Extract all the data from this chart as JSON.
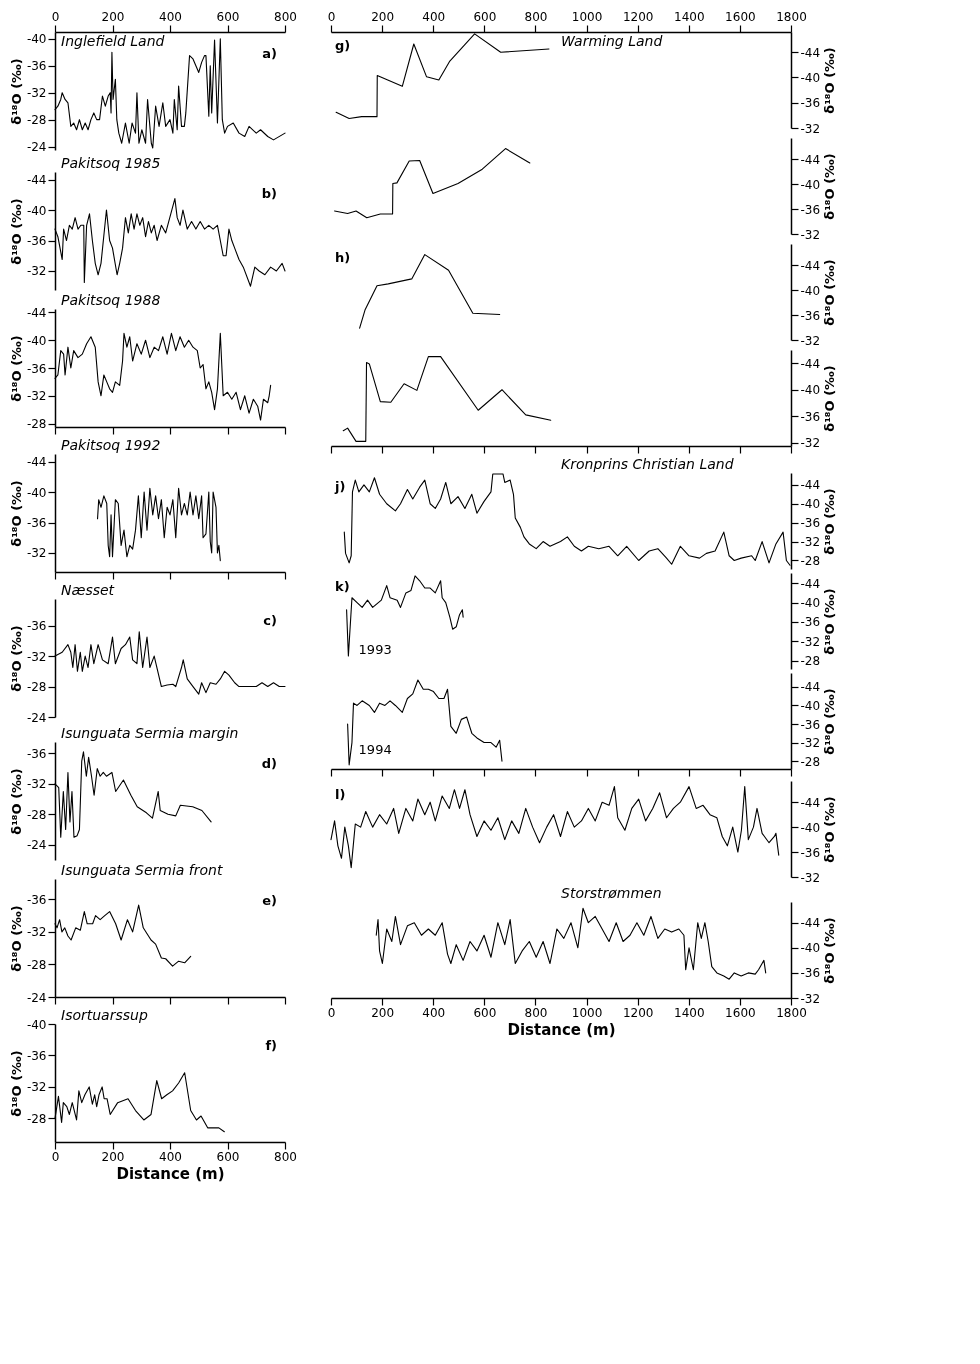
{
  "chart_data": [
    {
      "type": "line",
      "title": "Inglefield Land",
      "annotations": [
        "a)"
      ],
      "ylabel": "δ¹⁸O (‰)",
      "xlim": [
        0,
        800
      ],
      "x2lim": [
        0,
        800
      ],
      "x2ticks": [
        0,
        200,
        400,
        600,
        800
      ],
      "ylim": [
        -23.5,
        -41
      ],
      "yticks": [
        -40,
        -36,
        -32,
        -28,
        -24
      ],
      "x": [
        0,
        10,
        20,
        25,
        35,
        45,
        55,
        65,
        75,
        85,
        95,
        105,
        115,
        125,
        135,
        145,
        155,
        165,
        175,
        185,
        192,
        195,
        198,
        202,
        210,
        215,
        222,
        232,
        245,
        258,
        268,
        280,
        285,
        292,
        302,
        315,
        322,
        335,
        340,
        350,
        362,
        375,
        385,
        400,
        410,
        415,
        425,
        430,
        440,
        450,
        455,
        468,
        480,
        490,
        500,
        510,
        520,
        525,
        535,
        540,
        545,
        555,
        565,
        575,
        582,
        590,
        600,
        620,
        640,
        660,
        675,
        700,
        715,
        740,
        760,
        800
      ],
      "series": [
        {
          "color": "#000000",
          "values": [
            -29.5,
            -30,
            -31,
            -32,
            -31,
            -30.5,
            -27,
            -27.5,
            -26.5,
            -28,
            -26.5,
            -27.5,
            -26.5,
            -28,
            -29,
            -28,
            -28,
            -31.5,
            -30,
            -31.5,
            -32,
            -29,
            -38,
            -31,
            -34,
            -28,
            -26,
            -24.5,
            -27.5,
            -24.5,
            -27.5,
            -26,
            -32,
            -24.5,
            -26.5,
            -24.5,
            -31,
            -24.5,
            -23.8,
            -30,
            -27,
            -30.5,
            -27,
            -28,
            -26,
            -31,
            -26.5,
            -33,
            -27,
            -27,
            -29,
            -37.5,
            -37,
            -36,
            -35,
            -36.5,
            -37.5,
            -37.5,
            -28.5,
            -36,
            -29,
            -39.8,
            -27.5,
            -40,
            -28,
            -26,
            -27,
            -27.5,
            -26,
            -25.5,
            -27,
            -26,
            -26.5,
            -25.5,
            -25,
            -26
          ]
        }
      ]
    },
    {
      "type": "line",
      "title": "Pakitsoq 1985",
      "annotations": [
        "b)"
      ],
      "ylabel": "δ¹⁸O (‰)",
      "xlim": [
        0,
        800
      ],
      "ylim": [
        -29.5,
        -45
      ],
      "yticks": [
        -44,
        -40,
        -36,
        -32
      ],
      "x": [
        0,
        10,
        20,
        25,
        30,
        40,
        50,
        60,
        70,
        80,
        90,
        100,
        102,
        110,
        120,
        130,
        140,
        150,
        160,
        179,
        190,
        200,
        216,
        225,
        235,
        245,
        255,
        265,
        275,
        285,
        295,
        305,
        315,
        325,
        335,
        345,
        355,
        370,
        385,
        417,
        425,
        435,
        445,
        460,
        475,
        490,
        505,
        520,
        535,
        550,
        565,
        585,
        595,
        605,
        615,
        625,
        640,
        655,
        680,
        695,
        710,
        730,
        750,
        770,
        790,
        800
      ],
      "series": [
        {
          "color": "#000000",
          "values": [
            -37.5,
            -36.5,
            -34.5,
            -33.5,
            -37.5,
            -36,
            -38,
            -37.5,
            -39,
            -37.5,
            -38,
            -38,
            -30.5,
            -38,
            -39.5,
            -36,
            -33,
            -31.5,
            -33,
            -40,
            -36,
            -35,
            -31.5,
            -33,
            -35,
            -39,
            -37,
            -39.5,
            -37.5,
            -39.5,
            -38,
            -39,
            -36.5,
            -38.5,
            -37,
            -38,
            -36,
            -38,
            -37,
            -41.5,
            -39,
            -38,
            -40,
            -37.5,
            -38.5,
            -37.5,
            -38.5,
            -37.5,
            -38,
            -37.5,
            -38,
            -34,
            -34,
            -37.5,
            -36,
            -35,
            -33.5,
            -32.5,
            -30,
            -32.5,
            -32,
            -31.5,
            -32.5,
            -32,
            -33,
            -32
          ]
        }
      ]
    },
    {
      "type": "line",
      "title": "Pakitsoq 1988",
      "ylabel": "δ¹⁸O (‰)",
      "xlim": [
        0,
        800
      ],
      "xticks": [
        0,
        200,
        400,
        600,
        800
      ],
      "tick_labels": "y",
      "ylim": [
        -27.5,
        -44.5
      ],
      "yticks": [
        -44,
        -40,
        -36,
        -32,
        -28
      ],
      "x": [
        0,
        10,
        20,
        30,
        35,
        45,
        55,
        65,
        80,
        95,
        110,
        125,
        140,
        150,
        160,
        170,
        180,
        190,
        200,
        210,
        225,
        235,
        240,
        250,
        260,
        270,
        285,
        300,
        315,
        330,
        345,
        360,
        375,
        390,
        405,
        420,
        435,
        450,
        465,
        480,
        495,
        505,
        515,
        525,
        535,
        545,
        555,
        565,
        575,
        585,
        600,
        615,
        630,
        645,
        660,
        675,
        690,
        705,
        715,
        725,
        740,
        745,
        750
      ],
      "series": [
        {
          "color": "#000000",
          "values": [
            -34.5,
            -35,
            -38.5,
            -38,
            -35,
            -39,
            -36,
            -38.5,
            -37.5,
            -38,
            -39.5,
            -40.5,
            -39,
            -34,
            -32,
            -35,
            -34,
            -33,
            -32.5,
            -34,
            -33.5,
            -37,
            -41,
            -39,
            -40.5,
            -37,
            -39.5,
            -38,
            -40,
            -37.5,
            -39,
            -38.5,
            -40.5,
            -38,
            -41,
            -38.5,
            -40.5,
            -39,
            -40,
            -39,
            -38.5,
            -36,
            -36.5,
            -33,
            -34,
            -32.5,
            -30,
            -33,
            -41,
            -32,
            -32.5,
            -31.5,
            -32.5,
            -30,
            -32,
            -29.5,
            -31.5,
            -30.5,
            -28.5,
            -31.5,
            -31,
            -32,
            -33.5
          ]
        }
      ]
    },
    {
      "type": "line",
      "title": "Pakitsoq 1992",
      "ylabel": "δ¹⁸O (‰)",
      "xlim": [
        0,
        800
      ],
      "xticks": [
        0,
        200,
        400,
        600,
        800
      ],
      "tick_labels": "y",
      "ylim": [
        -29.5,
        -45
      ],
      "yticks": [
        -44,
        -40,
        -36,
        -32
      ],
      "x": [
        148,
        152,
        160,
        170,
        180,
        185,
        190,
        195,
        200,
        210,
        220,
        230,
        240,
        250,
        260,
        270,
        280,
        290,
        300,
        310,
        320,
        330,
        340,
        350,
        360,
        370,
        380,
        390,
        400,
        410,
        420,
        430,
        440,
        450,
        460,
        470,
        480,
        490,
        500,
        510,
        515,
        525,
        535,
        540,
        545,
        550,
        560,
        565,
        570,
        575
      ],
      "series": [
        {
          "color": "#000000",
          "values": [
            -36.5,
            -39,
            -38,
            -39.5,
            -38.5,
            -33,
            -31.5,
            -37,
            -31.5,
            -39,
            -38.5,
            -33,
            -35,
            -31.5,
            -33,
            -32.5,
            -35,
            -39.5,
            -34,
            -40,
            -35,
            -40.5,
            -37,
            -39.5,
            -36.5,
            -39,
            -34,
            -38,
            -37,
            -39,
            -34,
            -40.5,
            -37,
            -38.5,
            -37,
            -40,
            -37,
            -39.5,
            -36.5,
            -39.5,
            -34,
            -34.5,
            -40,
            -33.5,
            -32,
            -40,
            -38,
            -32,
            -33,
            -31
          ]
        }
      ]
    },
    {
      "type": "line",
      "title": "Næsset",
      "annotations": [
        "c)"
      ],
      "ylabel": "δ¹⁸O (‰)",
      "xlim": [
        0,
        800
      ],
      "ylim": [
        -24,
        -39.5
      ],
      "yticks": [
        -36,
        -32,
        -28,
        -24
      ],
      "x": [
        0,
        25,
        45,
        55,
        62,
        70,
        78,
        88,
        95,
        105,
        115,
        125,
        135,
        150,
        165,
        185,
        200,
        210,
        230,
        245,
        260,
        270,
        285,
        293,
        305,
        320,
        330,
        345,
        370,
        390,
        410,
        420,
        440,
        446,
        460,
        480,
        500,
        510,
        525,
        540,
        560,
        575,
        590,
        605,
        625,
        640,
        670,
        700,
        720,
        740,
        760,
        780,
        800
      ],
      "series": [
        {
          "color": "#000000",
          "values": [
            -32,
            -32.5,
            -33.5,
            -32.5,
            -30.5,
            -33.5,
            -30,
            -32.5,
            -30,
            -32,
            -30.5,
            -33.5,
            -31,
            -33.5,
            -31.5,
            -31,
            -34.5,
            -31,
            -33,
            -33.5,
            -34.5,
            -31.5,
            -31,
            -35.2,
            -30.5,
            -34.5,
            -30.5,
            -32,
            -28,
            -28.2,
            -28.3,
            -28,
            -30.5,
            -31.5,
            -29,
            -28,
            -27,
            -28.5,
            -27.2,
            -28.5,
            -28.3,
            -29,
            -30,
            -29.5,
            -28.5,
            -28,
            -28,
            -28,
            -28.5,
            -28,
            -28.5,
            -28,
            -28
          ]
        }
      ]
    },
    {
      "type": "line",
      "title": "Isunguata Sermia margin",
      "annotations": [
        "d)"
      ],
      "ylabel": "δ¹⁸O (‰)",
      "xlim": [
        0,
        800
      ],
      "ylim": [
        -22,
        -37.5
      ],
      "yticks": [
        -36,
        -32,
        -28,
        -24
      ],
      "x": [
        0,
        13,
        20,
        29,
        37,
        45,
        52,
        59,
        66,
        77,
        85,
        93,
        99,
        109,
        117,
        127,
        136,
        147,
        157,
        168,
        179,
        198,
        211,
        238,
        264,
        286,
        318,
        339,
        359,
        366,
        393,
        420,
        436,
        479,
        511,
        543
      ],
      "series": [
        {
          "color": "#000000",
          "values": [
            -32,
            -31.5,
            -25,
            -31,
            -26,
            -33.5,
            -27,
            -31,
            -25,
            -25.2,
            -26,
            -35,
            -36.2,
            -33,
            -35.5,
            -33,
            -30.5,
            -34,
            -33,
            -33.5,
            -33,
            -33.5,
            -31,
            -32.5,
            -30.5,
            -29,
            -28.2,
            -27.5,
            -31,
            -28.5,
            -28,
            -27.8,
            -29.2,
            -29,
            -28.5,
            -27
          ]
        }
      ]
    },
    {
      "type": "line",
      "title": "Isunguata Sermia front",
      "annotations": [
        "e)"
      ],
      "ylabel": "δ¹⁸O (‰)",
      "xlim": [
        0,
        800
      ],
      "xticks": [
        0,
        200,
        400,
        600,
        800
      ],
      "tick_labels": "y",
      "ylim": [
        -24,
        -38.5
      ],
      "yticks": [
        -36,
        -32,
        -28,
        -24
      ],
      "x": [
        0,
        7,
        16,
        24,
        34,
        45,
        56,
        72,
        88,
        102,
        112,
        131,
        141,
        157,
        173,
        190,
        211,
        230,
        252,
        270,
        291,
        307,
        334,
        350,
        370,
        385,
        409,
        430,
        451,
        472
      ],
      "series": [
        {
          "color": "#000000",
          "values": [
            -33,
            -32.5,
            -33.5,
            -32,
            -32.5,
            -31.5,
            -31,
            -32.5,
            -32.2,
            -34.5,
            -33,
            -33,
            -34,
            -33.5,
            -34,
            -34.5,
            -33,
            -31,
            -33.5,
            -32,
            -35.3,
            -32.5,
            -31,
            -30.5,
            -28.8,
            -28.7,
            -27.8,
            -28.4,
            -28.2,
            -29
          ]
        }
      ]
    },
    {
      "type": "line",
      "title": "Isortuarssup",
      "annotations": [
        "f)"
      ],
      "ylabel": "δ¹⁸O (‰)",
      "xlabel": "Distance (m)",
      "xlim": [
        0,
        800
      ],
      "xticks": [
        0,
        200,
        400,
        600,
        800
      ],
      "ylim": [
        -25,
        -40
      ],
      "yticks": [
        -40,
        -36,
        -32,
        -28
      ],
      "x": [
        0,
        12,
        23,
        29,
        41,
        50,
        60,
        75,
        83,
        93,
        104,
        119,
        130,
        138,
        145,
        153,
        164,
        171,
        181,
        192,
        218,
        254,
        280,
        309,
        334,
        354,
        371,
        389,
        409,
        430,
        451,
        472,
        492,
        508,
        531,
        570,
        589
      ],
      "series": [
        {
          "color": "#000000",
          "values": [
            -28,
            -30.8,
            -27.5,
            -30,
            -29.5,
            -28.5,
            -30,
            -27.8,
            -31.5,
            -30,
            -31,
            -32,
            -29.8,
            -31,
            -29.5,
            -31,
            -32,
            -30.5,
            -30.5,
            -28.5,
            -30,
            -30.5,
            -29,
            -27.8,
            -28.5,
            -32.8,
            -30.5,
            -31,
            -31.5,
            -32.5,
            -33.8,
            -29,
            -27.8,
            -28.3,
            -26.8,
            -26.8,
            -26.3
          ]
        }
      ]
    },
    {
      "type": "line",
      "title": "Warming Land",
      "annotations": [
        "g)"
      ],
      "ylabel": "δ¹⁸O (‰)",
      "xlim": [
        0,
        1800
      ],
      "x2lim": [
        0,
        1800
      ],
      "x2ticks": [
        0,
        200,
        400,
        600,
        800,
        1000,
        1200,
        1400,
        1600,
        1800
      ],
      "ylim": [
        -32,
        -47.2
      ],
      "yticks": [
        -44,
        -40,
        -36,
        -32
      ],
      "x": [
        20,
        71,
        120,
        180,
        181,
        279,
        324,
        374,
        422,
        465,
        562,
        664,
        853
      ],
      "series": [
        {
          "color": "#000000",
          "values": [
            -34.5,
            -33.5,
            -33.8,
            -33.8,
            -40.3,
            -38.6,
            -45.3,
            -40.1,
            -39.6,
            -42.6,
            -46.9,
            -44,
            -44.5
          ]
        }
      ]
    },
    {
      "type": "line",
      "ylabel": "δ¹⁸O (‰)",
      "xlim": [
        0,
        1800
      ],
      "ylim": [
        -32,
        -47.4
      ],
      "yticks": [
        -44,
        -40,
        -36,
        -32
      ],
      "x": [
        14,
        65,
        98,
        140,
        193,
        241,
        242,
        258,
        306,
        347,
        399,
        497,
        592,
        683,
        778
      ],
      "series": [
        {
          "color": "#000000",
          "values": [
            -35.7,
            -35.3,
            -35.7,
            -34.6,
            -35.2,
            -35.2,
            -40.1,
            -40.2,
            -43.7,
            -43.8,
            -38.5,
            -40.1,
            -42.4,
            -45.7,
            -43.4
          ]
        }
      ]
    },
    {
      "type": "line",
      "annotations": [
        "h)"
      ],
      "ylabel": "δ¹⁸O (‰)",
      "xlim": [
        0,
        1800
      ],
      "ylim": [
        -32,
        -47.4
      ],
      "yticks": [
        -44,
        -40,
        -36,
        -32
      ],
      "x": [
        112,
        133,
        180,
        224,
        316,
        367,
        460,
        555,
        660
      ],
      "series": [
        {
          "color": "#000000",
          "values": [
            -33.9,
            -36.8,
            -40.7,
            -41,
            -41.8,
            -45.7,
            -43.2,
            -36.3,
            -36.1
          ]
        }
      ]
    },
    {
      "type": "line",
      "ylabel": "δ¹⁸O (‰)",
      "xlim": [
        0,
        1800
      ],
      "xticks": [
        0,
        200,
        400,
        600,
        800,
        1000,
        1200,
        1400,
        1600,
        1800
      ],
      "tick_labels": "y",
      "ylim": [
        -31.5,
        -46
      ],
      "yticks": [
        -44,
        -40,
        -36,
        -32
      ],
      "x": [
        48,
        65,
        98,
        136,
        139,
        150,
        193,
        234,
        286,
        336,
        381,
        429,
        576,
        669,
        762,
        860
      ],
      "series": [
        {
          "color": "#000000",
          "values": [
            -33.8,
            -34.2,
            -32.2,
            -32.2,
            -44.1,
            -43.9,
            -38.2,
            -38.1,
            -40.9,
            -39.9,
            -45,
            -45,
            -36.9,
            -40,
            -36.2,
            -35.4
          ]
        }
      ]
    },
    {
      "type": "line",
      "title": "Kronprins Christian Land",
      "annotations": [
        "j)"
      ],
      "ylabel": "δ¹⁸O (‰)",
      "xlim": [
        0,
        1800
      ],
      "ylim": [
        -26.2,
        -46.5
      ],
      "yticks": [
        -44,
        -40,
        -36,
        -32,
        -28
      ],
      "x": [
        52,
        57,
        71,
        79,
        84,
        95,
        109,
        129,
        150,
        170,
        190,
        218,
        252,
        272,
        299,
        320,
        347,
        367,
        388,
        408,
        429,
        449,
        469,
        497,
        524,
        551,
        571,
        599,
        626,
        633,
        673,
        680,
        701,
        714,
        721,
        741,
        755,
        776,
        803,
        830,
        857,
        898,
        925,
        952,
        980,
        1007,
        1048,
        1088,
        1122,
        1157,
        1204,
        1245,
        1279,
        1313,
        1333,
        1367,
        1401,
        1442,
        1469,
        1503,
        1537,
        1558,
        1578,
        1605,
        1646,
        1660,
        1687,
        1714,
        1741,
        1769,
        1782,
        1796
      ],
      "series": [
        {
          "color": "#000000",
          "values": [
            -34,
            -29.5,
            -27.5,
            -29,
            -42.5,
            -45,
            -42.5,
            -44,
            -42.5,
            -45.5,
            -42,
            -40,
            -38.5,
            -40,
            -43,
            -41,
            -43.5,
            -45,
            -40,
            -39,
            -41,
            -44.5,
            -40,
            -41.5,
            -39,
            -42,
            -38,
            -40.5,
            -42.5,
            -46.3,
            -46.3,
            -44.5,
            -45,
            -42,
            -37,
            -35,
            -33,
            -31.5,
            -30.5,
            -32,
            -31,
            -32,
            -33,
            -31,
            -30,
            -31,
            -30.5,
            -31,
            -29,
            -31,
            -28,
            -30,
            -30.5,
            -28.5,
            -27.2,
            -31,
            -29,
            -28.5,
            -29.5,
            -30,
            -34,
            -29,
            -28,
            -28.5,
            -29,
            -28,
            -32,
            -27.5,
            -31.5,
            -34,
            -28,
            -27
          ]
        }
      ]
    },
    {
      "type": "line",
      "annotations": [
        "k)"
      ],
      "ylabel": "δ¹⁸O (‰)",
      "xlim": [
        0,
        1800
      ],
      "ylim": [
        -26.3,
        -46.1
      ],
      "yticks": [
        -44,
        -40,
        -36,
        -32,
        -28
      ],
      "x": [
        61,
        68,
        82,
        102,
        122,
        143,
        163,
        197,
        218,
        231,
        259,
        272,
        293,
        313,
        329,
        347,
        367,
        388,
        408,
        429,
        435,
        449,
        465,
        476,
        490,
        503,
        514,
        517
      ],
      "series": [
        {
          "name": "1993",
          "color": "#000000",
          "values": [
            -38.5,
            -29,
            -41,
            -40,
            -39,
            -40.5,
            -39,
            -40.5,
            -43.5,
            -41,
            -40.5,
            -39,
            -42,
            -42.5,
            -45.5,
            -44.5,
            -43,
            -43,
            -42,
            -44.5,
            -41,
            -40,
            -37,
            -34.5,
            -35,
            -37.5,
            -38.5,
            -37
          ]
        }
      ]
    },
    {
      "type": "line",
      "ylabel": "δ¹⁸O (‰)",
      "xlim": [
        0,
        1800
      ],
      "xticks": [
        0,
        200,
        400,
        600,
        800,
        1000,
        1200,
        1400,
        1600,
        1800
      ],
      "tick_labels": "y",
      "ylim": [
        -26.3,
        -47
      ],
      "yticks": [
        -44,
        -40,
        -36,
        -32,
        -28
      ],
      "x": [
        65,
        71,
        82,
        88,
        102,
        122,
        150,
        170,
        190,
        211,
        231,
        252,
        279,
        299,
        320,
        340,
        361,
        381,
        401,
        422,
        442,
        456,
        469,
        490,
        510,
        531,
        551,
        571,
        599,
        626,
        646,
        660,
        669
      ],
      "series": [
        {
          "name": "1994",
          "color": "#000000",
          "values": [
            -36,
            -27.2,
            -32,
            -40.5,
            -40,
            -41,
            -40,
            -38.5,
            -40.5,
            -40,
            -41,
            -40,
            -38.5,
            -41.5,
            -42.5,
            -45.5,
            -43.5,
            -43.5,
            -43,
            -41.5,
            -41.5,
            -43.5,
            -35.5,
            -34,
            -37,
            -37.5,
            -34,
            -33,
            -32,
            -32,
            -31,
            -32.5,
            -28
          ]
        }
      ]
    },
    {
      "type": "line",
      "annotations": [
        "l)"
      ],
      "ylabel": "δ¹⁸O (‰)",
      "xlim": [
        0,
        1800
      ],
      "ylim": [
        -32,
        -47.4
      ],
      "yticks": [
        -44,
        -40,
        -36,
        -32
      ],
      "x": [
        0,
        14,
        27,
        41,
        54,
        68,
        79,
        95,
        116,
        136,
        163,
        190,
        218,
        245,
        265,
        293,
        320,
        340,
        367,
        388,
        408,
        435,
        463,
        483,
        503,
        524,
        544,
        571,
        599,
        626,
        653,
        680,
        707,
        735,
        762,
        789,
        816,
        844,
        871,
        898,
        925,
        952,
        980,
        1007,
        1034,
        1061,
        1088,
        1109,
        1122,
        1150,
        1177,
        1204,
        1231,
        1259,
        1286,
        1313,
        1340,
        1367,
        1401,
        1429,
        1456,
        1483,
        1510,
        1531,
        1551,
        1572,
        1592,
        1606,
        1619,
        1633,
        1653,
        1667,
        1687,
        1714,
        1735,
        1741,
        1752
      ],
      "series": [
        {
          "color": "#000000",
          "values": [
            -38,
            -41,
            -37,
            -35,
            -40,
            -37,
            -33.5,
            -40.5,
            -40,
            -42.5,
            -40,
            -42,
            -40.5,
            -43,
            -39,
            -43,
            -41,
            -44.5,
            -42,
            -44,
            -41,
            -45,
            -43,
            -46,
            -43,
            -46,
            -42,
            -38.5,
            -41,
            -39.5,
            -41.5,
            -38,
            -41,
            -39,
            -43,
            -40,
            -37.5,
            -40,
            -42,
            -38.5,
            -42.5,
            -40,
            -41,
            -43,
            -41,
            -44,
            -43.5,
            -46.5,
            -41.5,
            -39.5,
            -43,
            -44.5,
            -41,
            -43,
            -45.5,
            -41.5,
            -43,
            -44,
            -46.5,
            -43,
            -43.5,
            -42,
            -41.5,
            -38.5,
            -37,
            -40,
            -36,
            -39.5,
            -46.5,
            -38,
            -40,
            -43,
            -39,
            -37.5,
            -38.5,
            -39,
            -35.5
          ]
        }
      ]
    },
    {
      "type": "line",
      "title": "Storstrømmen",
      "ylabel": "δ¹⁸O (‰)",
      "xlabel": "Distance (m)",
      "xlim": [
        0,
        1800
      ],
      "xticks": [
        0,
        200,
        400,
        600,
        800,
        1000,
        1200,
        1400,
        1600,
        1800
      ],
      "ylim": [
        -32,
        -47.3
      ],
      "yticks": [
        -44,
        -40,
        -36,
        -32
      ],
      "x": [
        177,
        184,
        190,
        201,
        218,
        238,
        252,
        272,
        299,
        326,
        354,
        381,
        408,
        435,
        456,
        469,
        490,
        517,
        544,
        571,
        599,
        626,
        653,
        680,
        701,
        721,
        748,
        776,
        803,
        830,
        857,
        884,
        911,
        939,
        966,
        986,
        1007,
        1034,
        1061,
        1088,
        1116,
        1143,
        1170,
        1197,
        1224,
        1252,
        1279,
        1306,
        1333,
        1361,
        1381,
        1388,
        1401,
        1418,
        1435,
        1449,
        1463,
        1476,
        1490,
        1510,
        1537,
        1558,
        1578,
        1605,
        1633,
        1660,
        1673,
        1694,
        1701
      ],
      "series": [
        {
          "color": "#000000",
          "values": [
            -42,
            -44.5,
            -39.5,
            -37.5,
            -43,
            -41,
            -45,
            -40.5,
            -43.5,
            -44,
            -42,
            -43,
            -42,
            -44,
            -39,
            -37.5,
            -40.5,
            -38,
            -41,
            -39.5,
            -42,
            -38.5,
            -44,
            -40.5,
            -44.5,
            -37.5,
            -39.5,
            -41,
            -38.5,
            -41,
            -37.5,
            -43,
            -41.5,
            -44,
            -40,
            -46.3,
            -44,
            -45,
            -43,
            -41,
            -44,
            -41,
            -42,
            -44,
            -42,
            -45,
            -41.5,
            -43,
            -42.5,
            -43,
            -42,
            -36.5,
            -40,
            -36.5,
            -44,
            -41.5,
            -44,
            -41,
            -37,
            -36,
            -35.5,
            -35,
            -36,
            -35.5,
            -36,
            -35.8,
            -36.5,
            -38,
            -36
          ]
        }
      ]
    }
  ]
}
